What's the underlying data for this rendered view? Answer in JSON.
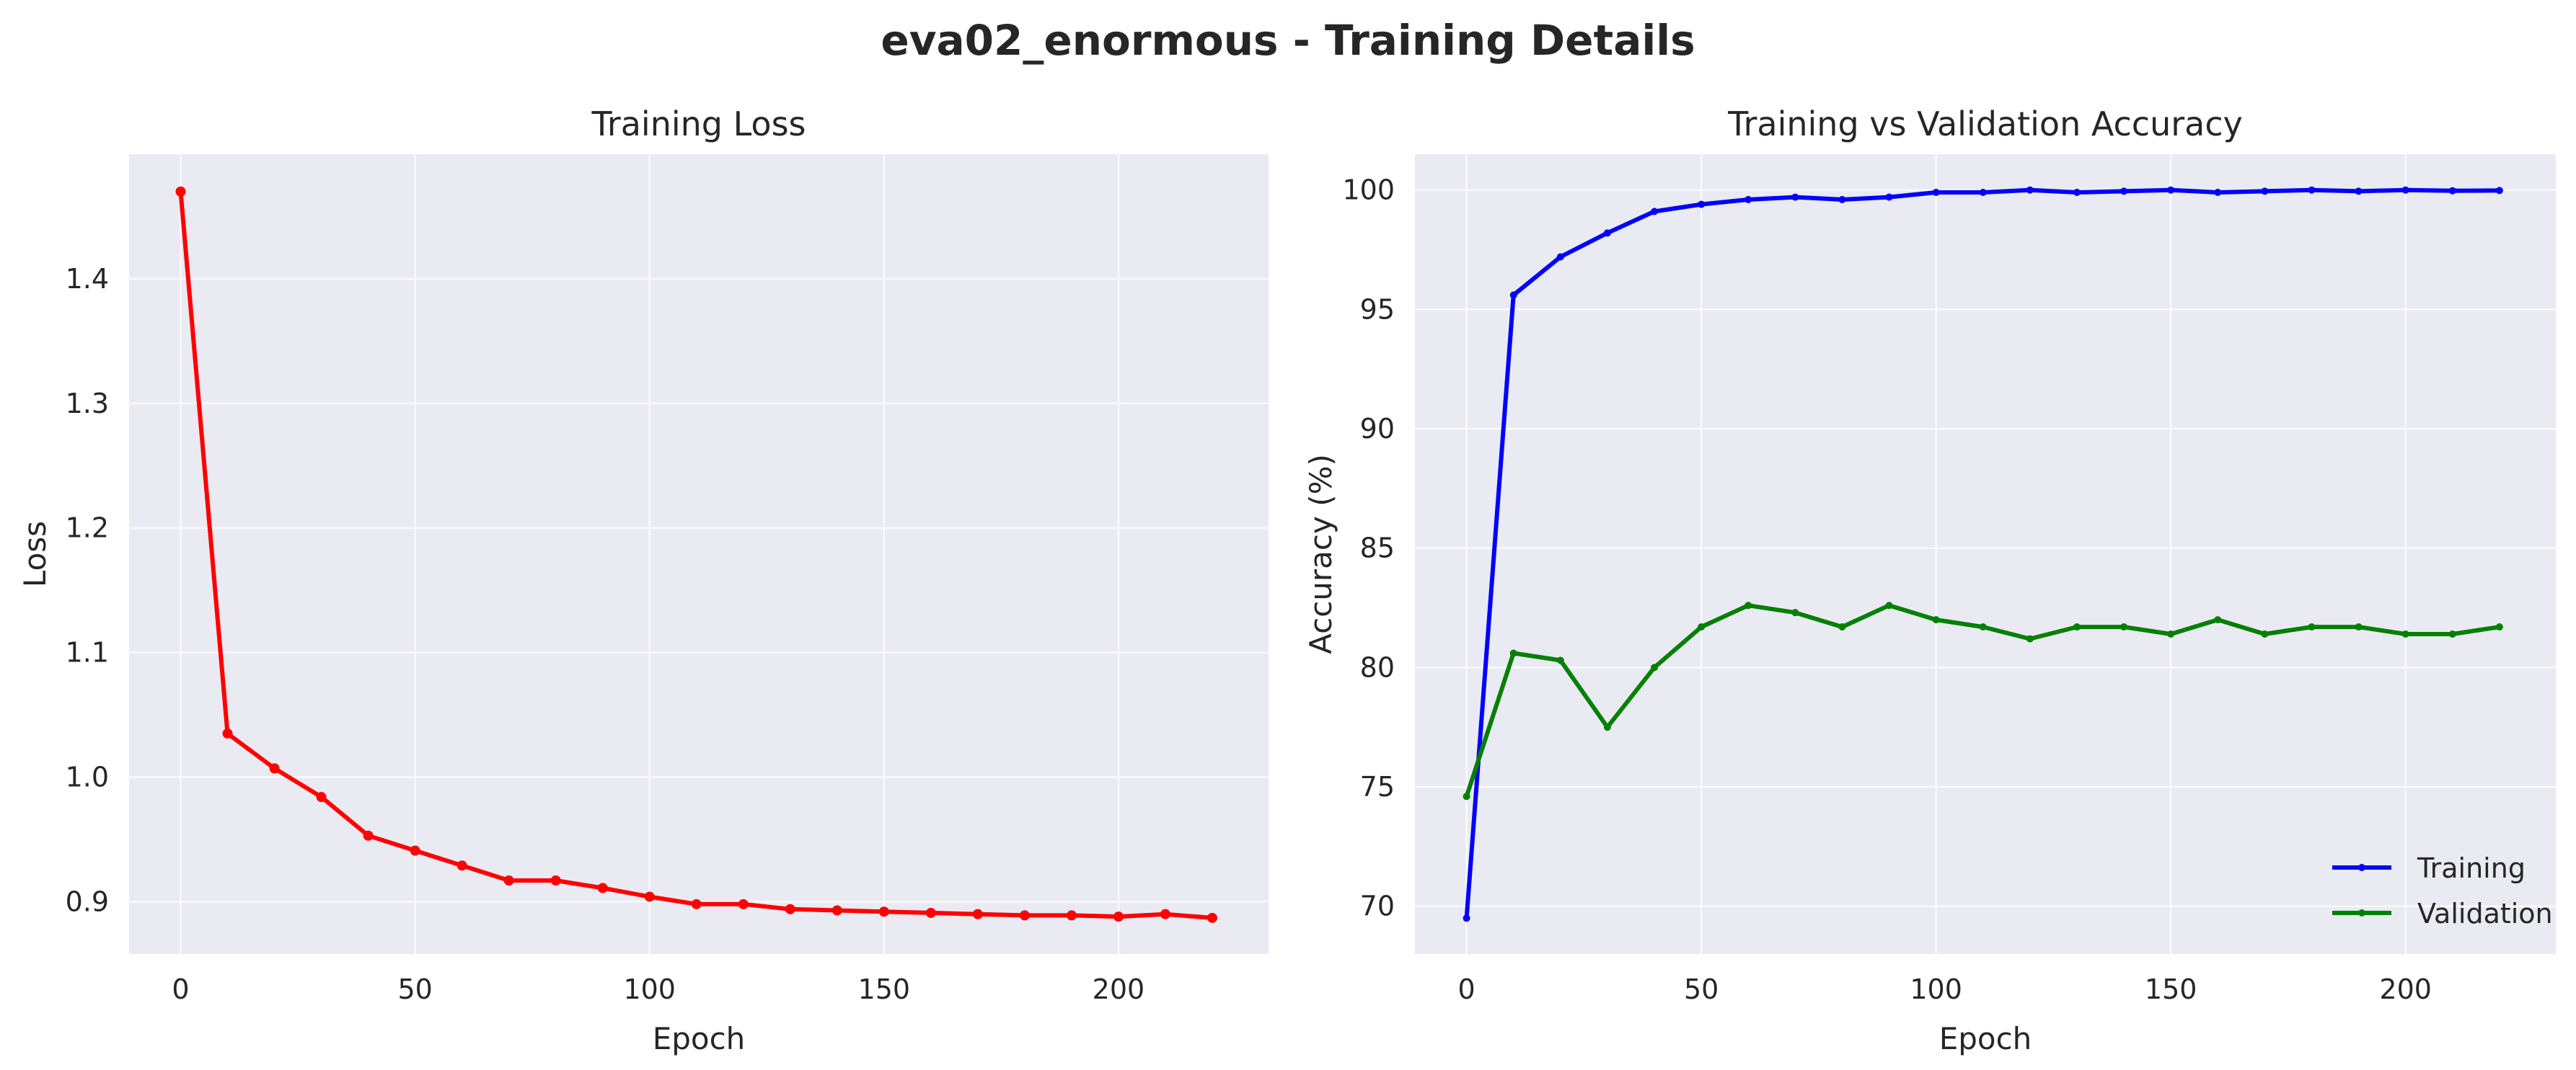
{
  "figure": {
    "title": "eva02_enormous - Training Details"
  },
  "colors": {
    "plot_bg": "#eaeaf2",
    "grid": "#ffffff",
    "loss": "#ff0000",
    "training": "#0000ff",
    "validation": "#008000"
  },
  "chart_data": [
    {
      "type": "line",
      "title": "Training Loss",
      "xlabel": "Epoch",
      "ylabel": "Loss",
      "x": [
        0,
        10,
        20,
        30,
        40,
        50,
        60,
        70,
        80,
        90,
        100,
        110,
        120,
        130,
        140,
        150,
        160,
        170,
        180,
        190,
        200,
        210,
        220
      ],
      "series": [
        {
          "values": [
            1.47,
            1.035,
            1.007,
            0.984,
            0.953,
            0.941,
            0.929,
            0.917,
            0.917,
            0.911,
            0.904,
            0.898,
            0.898,
            0.894,
            0.893,
            0.892,
            0.891,
            0.89,
            0.889,
            0.889,
            0.888,
            0.89,
            0.887
          ]
        }
      ],
      "xlim": [
        -11,
        232
      ],
      "ylim": [
        0.858,
        1.5
      ],
      "xticks": [
        0,
        50,
        100,
        150,
        200
      ],
      "yticks": [
        0.9,
        1.0,
        1.1,
        1.2,
        1.3,
        1.4
      ],
      "ytick_labels": [
        "0.9",
        "1.0",
        "1.1",
        "1.2",
        "1.3",
        "1.4"
      ],
      "grid": true
    },
    {
      "type": "line",
      "title": "Training vs Validation Accuracy",
      "xlabel": "Epoch",
      "ylabel": "Accuracy (%)",
      "x": [
        0,
        10,
        20,
        30,
        40,
        50,
        60,
        70,
        80,
        90,
        100,
        110,
        120,
        130,
        140,
        150,
        160,
        170,
        180,
        190,
        200,
        210,
        220
      ],
      "series": [
        {
          "name": "Training",
          "values": [
            69.5,
            95.6,
            97.2,
            98.2,
            99.1,
            99.4,
            99.6,
            99.7,
            99.6,
            99.7,
            99.9,
            99.9,
            100.0,
            99.9,
            99.95,
            100.0,
            99.9,
            99.95,
            100.0,
            99.95,
            100.0,
            99.97,
            99.98
          ]
        },
        {
          "name": "Validation",
          "values": [
            74.6,
            80.6,
            80.3,
            77.5,
            80.0,
            81.7,
            82.6,
            82.3,
            81.7,
            82.6,
            82.0,
            81.7,
            81.2,
            81.7,
            81.7,
            81.4,
            82.0,
            81.4,
            81.7,
            81.7,
            81.4,
            81.4,
            81.7
          ]
        }
      ],
      "xlim": [
        -11,
        232
      ],
      "ylim": [
        68.0,
        101.5
      ],
      "xticks": [
        0,
        50,
        100,
        150,
        200
      ],
      "yticks": [
        70,
        75,
        80,
        85,
        90,
        95,
        100
      ],
      "grid": true,
      "legend": "lower right"
    }
  ]
}
